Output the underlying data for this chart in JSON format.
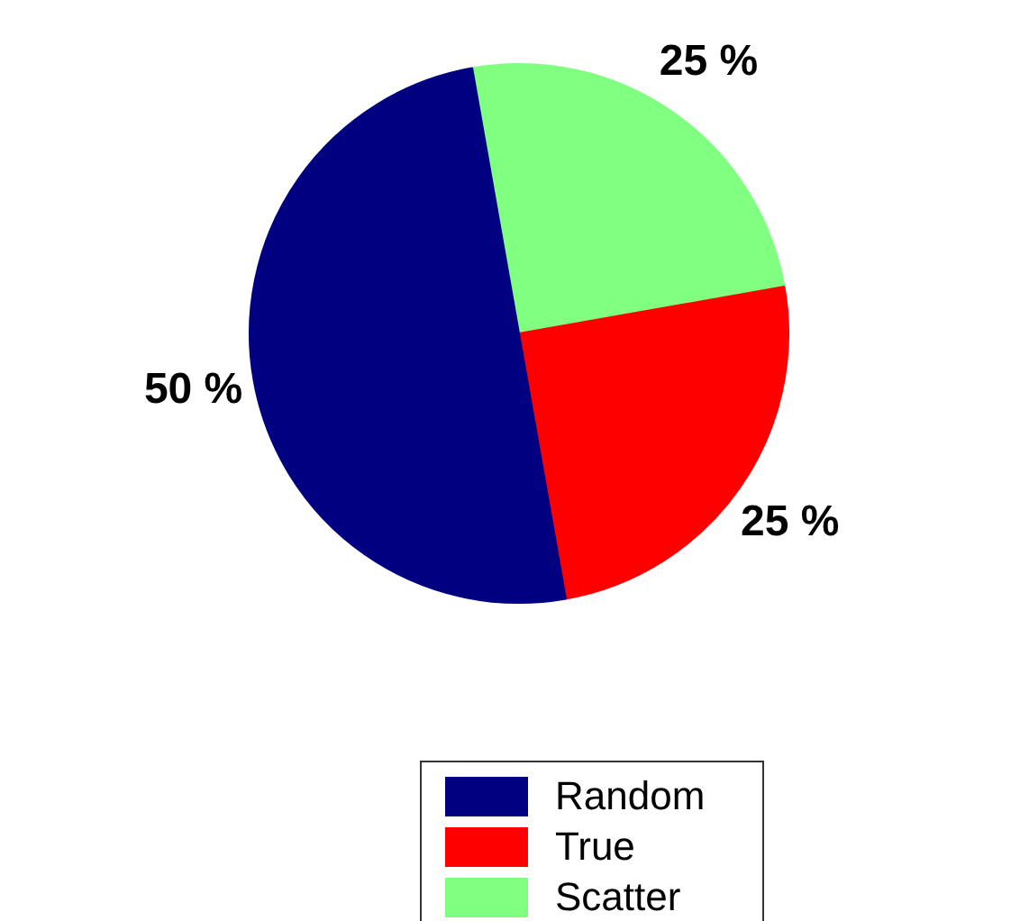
{
  "chart_data": {
    "type": "pie",
    "categories": [
      "Random",
      "True",
      "Scatter"
    ],
    "values": [
      50,
      25,
      25
    ],
    "colors": [
      "#000080",
      "#ff0000",
      "#80ff80"
    ],
    "value_labels": [
      "50 %",
      "25 %",
      "25 %"
    ],
    "legend": "bottom"
  }
}
